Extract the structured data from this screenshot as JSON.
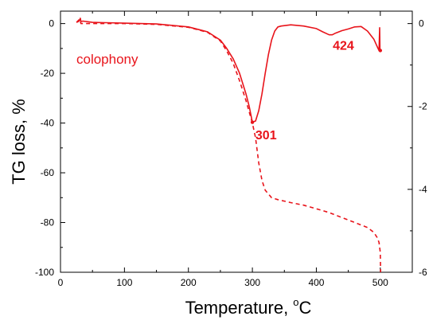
{
  "chart_data": {
    "type": "line",
    "xlabel_main": "Temperature, ",
    "xlabel_deg": "o",
    "xlabel_unit": "C",
    "ylabel": "TG loss, %",
    "xlim": [
      0,
      550
    ],
    "ylim": [
      -100,
      5
    ],
    "y2lim": [
      -6,
      0.3
    ],
    "x_ticks": [
      0,
      100,
      200,
      300,
      400,
      500
    ],
    "y_ticks": [
      0,
      -20,
      -40,
      -60,
      -80,
      -100
    ],
    "y2_ticks": [
      0,
      -2,
      -4,
      -6
    ],
    "sample_label": "colophony",
    "color": "#e8141b",
    "annotations": [
      {
        "text": "301",
        "x": 301,
        "y": -45
      },
      {
        "text": "424",
        "x": 422,
        "y": -9
      }
    ],
    "series": [
      {
        "style": "dashed",
        "axis": "left",
        "x": [
          25,
          30,
          32,
          40,
          60,
          100,
          150,
          200,
          230,
          250,
          260,
          270,
          280,
          290,
          300,
          305,
          310,
          315,
          320,
          330,
          340,
          360,
          380,
          400,
          420,
          440,
          460,
          480,
          490,
          495,
          498,
          500,
          500.5
        ],
        "y": [
          0.5,
          1.8,
          0,
          0,
          0,
          0,
          -0.3,
          -1.5,
          -3.5,
          -7,
          -11,
          -16,
          -23,
          -31,
          -40,
          -46,
          -56,
          -63,
          -67,
          -70,
          -70.8,
          -72,
          -73,
          -74.5,
          -76,
          -78,
          -80,
          -82,
          -84,
          -86,
          -88,
          -92,
          -100
        ]
      },
      {
        "style": "solid",
        "axis": "right",
        "x": [
          25,
          28,
          30,
          31,
          32,
          35,
          50,
          100,
          150,
          200,
          230,
          250,
          260,
          270,
          280,
          290,
          295,
          300,
          305,
          310,
          315,
          320,
          325,
          330,
          335,
          340,
          345,
          350,
          360,
          380,
          400,
          410,
          420,
          425,
          430,
          440,
          450,
          460,
          470,
          480,
          490,
          495,
          498,
          499,
          499.5,
          500
        ],
        "y": [
          0.03,
          0.05,
          0.08,
          0.13,
          0.05,
          0.06,
          0.03,
          0.01,
          -0.01,
          -0.08,
          -0.2,
          -0.4,
          -0.6,
          -0.85,
          -1.2,
          -1.7,
          -2.0,
          -2.38,
          -2.35,
          -2.1,
          -1.7,
          -1.2,
          -0.75,
          -0.4,
          -0.18,
          -0.08,
          -0.06,
          -0.05,
          -0.03,
          -0.06,
          -0.12,
          -0.2,
          -0.27,
          -0.27,
          -0.23,
          -0.17,
          -0.13,
          -0.08,
          -0.07,
          -0.18,
          -0.38,
          -0.55,
          -0.65,
          -0.1,
          -0.65,
          -0.65
        ]
      }
    ]
  }
}
